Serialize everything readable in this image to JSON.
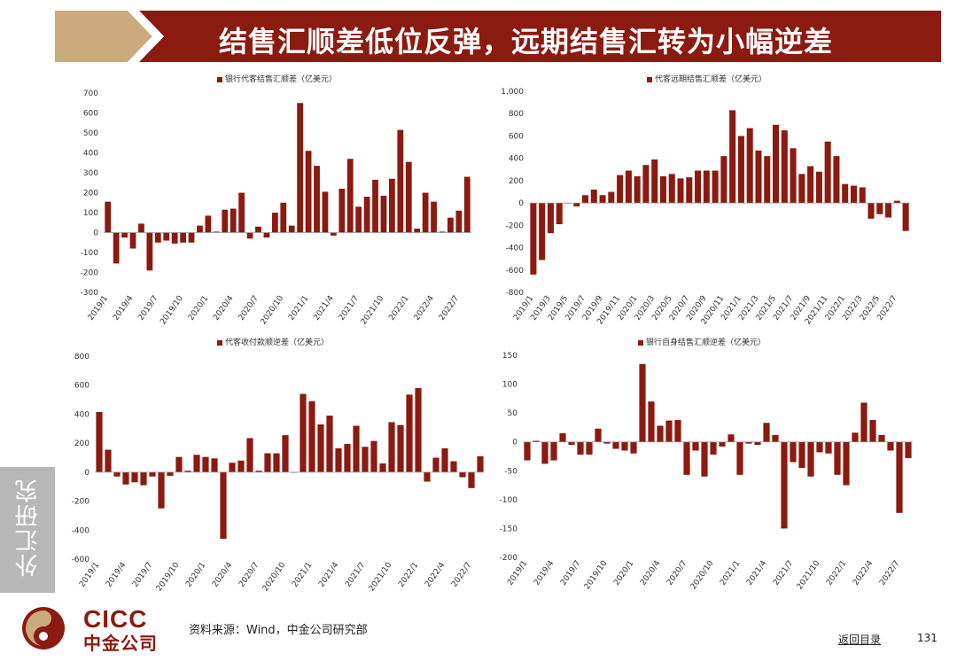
{
  "header": {
    "title": "结售汇顺差低位反弹，远期结售汇转为小幅逆差"
  },
  "side_tab": {
    "label": "外汇研究"
  },
  "footer": {
    "source": "资料来源：Wind，中金公司研究部",
    "back_link": "返回目录",
    "page_number": "131",
    "logo_en": "CICC",
    "logo_cn": "中金公司"
  },
  "colors": {
    "bar": "#8b1a10",
    "title_bg": "#8b1a10",
    "gold": "#c9ab7e"
  },
  "chart_data": [
    {
      "type": "bar",
      "legend": "银行代客结售汇顺差（亿美元）",
      "ylim": [
        -300,
        700
      ],
      "yticks": [
        700,
        600,
        500,
        400,
        300,
        200,
        100,
        0,
        -100,
        -200,
        -300
      ],
      "xtick_labels": [
        "2019/1",
        "2019/4",
        "2019/7",
        "2019/10",
        "2020/1",
        "2020/4",
        "2020/7",
        "2020/10",
        "2021/1",
        "2021/4",
        "2021/7",
        "2021/10",
        "2022/1",
        "2022/4",
        "2022/7"
      ],
      "xtick_step": 3,
      "values": [
        155,
        -155,
        -25,
        -80,
        45,
        -190,
        -50,
        -40,
        -55,
        -50,
        -50,
        35,
        85,
        5,
        115,
        120,
        200,
        -30,
        30,
        -25,
        100,
        150,
        35,
        650,
        410,
        335,
        205,
        -15,
        220,
        370,
        130,
        180,
        265,
        185,
        270,
        515,
        355,
        20,
        200,
        155,
        5,
        75,
        110,
        280
      ]
    },
    {
      "type": "bar",
      "legend": "代客远期结售汇顺差（亿美元）",
      "ylim": [
        -800,
        1000
      ],
      "yticks": [
        "1,000",
        "800",
        "600",
        "400",
        "200",
        "0",
        "-200",
        "-400",
        "-600",
        "-800"
      ],
      "ytick_values": [
        1000,
        800,
        600,
        400,
        200,
        0,
        -200,
        -400,
        -600,
        -800
      ],
      "xtick_labels": [
        "2019/1",
        "2019/3",
        "2019/5",
        "2019/7",
        "2019/9",
        "2019/11",
        "2020/1",
        "2020/3",
        "2020/5",
        "2020/7",
        "2020/9",
        "2020/11",
        "2021/1",
        "2021/3",
        "2021/5",
        "2021/7",
        "2021/9",
        "2021/11",
        "2022/1",
        "2022/3",
        "2022/5",
        "2022/7"
      ],
      "xtick_step": 2,
      "values": [
        -640,
        -510,
        -270,
        -190,
        0,
        -30,
        70,
        120,
        70,
        100,
        250,
        290,
        240,
        340,
        390,
        240,
        260,
        220,
        230,
        290,
        290,
        290,
        420,
        830,
        600,
        670,
        470,
        420,
        700,
        650,
        490,
        260,
        330,
        280,
        550,
        420,
        170,
        155,
        140,
        -140,
        -100,
        -130,
        20,
        -250
      ]
    },
    {
      "type": "bar",
      "legend": "代客收付款顺逆差（亿美元）",
      "ylim": [
        -600,
        800
      ],
      "yticks": [
        800,
        600,
        400,
        200,
        0,
        -200,
        -400,
        -600
      ],
      "xtick_labels": [
        "2019/1",
        "2019/4",
        "2019/7",
        "2019/10",
        "2020/1",
        "2020/4",
        "2020/7",
        "2020/10",
        "2021/1",
        "2021/4",
        "2021/7",
        "2021/10",
        "2022/1",
        "2022/4",
        "2022/7"
      ],
      "xtick_step": 3,
      "values": [
        415,
        155,
        -30,
        -85,
        -70,
        -90,
        -30,
        -250,
        -25,
        105,
        10,
        120,
        105,
        95,
        -460,
        65,
        80,
        235,
        10,
        130,
        130,
        255,
        0,
        540,
        490,
        330,
        390,
        165,
        195,
        320,
        175,
        215,
        60,
        345,
        325,
        535,
        580,
        -65,
        100,
        165,
        75,
        -35,
        -110,
        110
      ]
    },
    {
      "type": "bar",
      "legend": "银行自身结售汇顺逆差（亿美元）",
      "ylim": [
        -200,
        150
      ],
      "yticks": [
        150,
        100,
        50,
        0,
        -50,
        -100,
        -150,
        -200
      ],
      "xtick_labels": [
        "2019/1",
        "2019/4",
        "2019/7",
        "2019/10",
        "2020/1",
        "2020/4",
        "2020/7",
        "2020/10",
        "2021/1",
        "2021/4",
        "2021/7",
        "2021/10",
        "2022/1",
        "2022/4",
        "2022/7"
      ],
      "xtick_step": 3,
      "values": [
        -32,
        2,
        -38,
        -32,
        15,
        -5,
        -22,
        -22,
        23,
        -3,
        -12,
        -15,
        -20,
        135,
        70,
        28,
        37,
        38,
        -57,
        -15,
        -60,
        -22,
        -8,
        13,
        -57,
        -3,
        -5,
        33,
        12,
        -150,
        -35,
        -45,
        -60,
        -18,
        -20,
        -57,
        -75,
        16,
        68,
        38,
        12,
        -15,
        -123,
        -28
      ]
    }
  ]
}
